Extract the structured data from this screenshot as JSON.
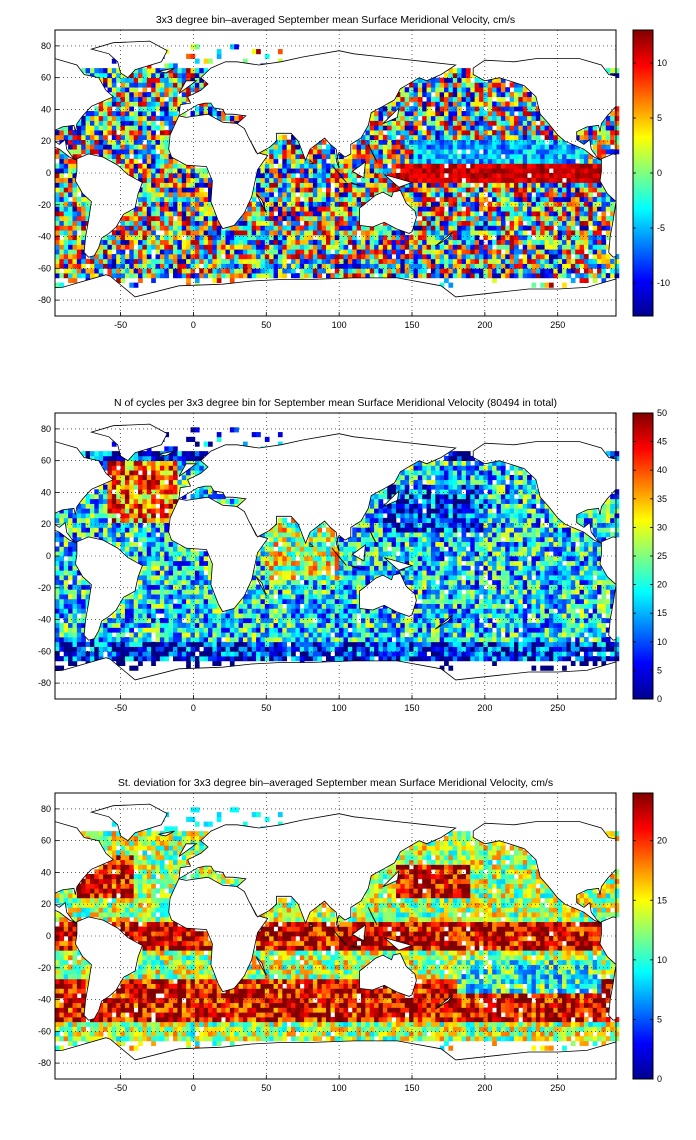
{
  "chart_data": [
    {
      "type": "heatmap",
      "title": "3x3 degree bin–averaged September mean Surface Meridional Velocity, cm/s",
      "xlabel": "",
      "ylabel": "",
      "xlim": [
        -95,
        290
      ],
      "ylim": [
        -90,
        90
      ],
      "x_ticks": [
        -50,
        0,
        50,
        100,
        150,
        200,
        250
      ],
      "y_ticks": [
        80,
        60,
        40,
        20,
        0,
        -20,
        -40,
        -60,
        -80
      ],
      "grid": true,
      "colorbar": {
        "min": -13,
        "max": 13,
        "ticks": [
          10,
          5,
          0,
          -5,
          -10
        ]
      },
      "pattern": "velocity"
    },
    {
      "type": "heatmap",
      "title": "N of cycles per 3x3 degree bin for September mean Surface Meridional Velocity (80494 in total)",
      "xlabel": "",
      "ylabel": "",
      "xlim": [
        -95,
        290
      ],
      "ylim": [
        -90,
        90
      ],
      "x_ticks": [
        -50,
        0,
        50,
        100,
        150,
        200,
        250
      ],
      "y_ticks": [
        80,
        60,
        40,
        20,
        0,
        -20,
        -40,
        -60,
        -80
      ],
      "grid": true,
      "colorbar": {
        "min": 0,
        "max": 50,
        "ticks": [
          50,
          45,
          40,
          35,
          30,
          25,
          20,
          15,
          10,
          5,
          0
        ]
      },
      "pattern": "count"
    },
    {
      "type": "heatmap",
      "title": "St. deviation for 3x3 degree bin–averaged September mean Surface Meridional Velocity, cm/s",
      "xlabel": "",
      "ylabel": "",
      "xlim": [
        -95,
        290
      ],
      "ylim": [
        -90,
        90
      ],
      "x_ticks": [
        -50,
        0,
        50,
        100,
        150,
        200,
        250
      ],
      "y_ticks": [
        80,
        60,
        40,
        20,
        0,
        -20,
        -40,
        -60,
        -80
      ],
      "grid": true,
      "colorbar": {
        "min": 0,
        "max": 24,
        "ticks": [
          20,
          15,
          10,
          5,
          0
        ]
      },
      "pattern": "std"
    }
  ]
}
